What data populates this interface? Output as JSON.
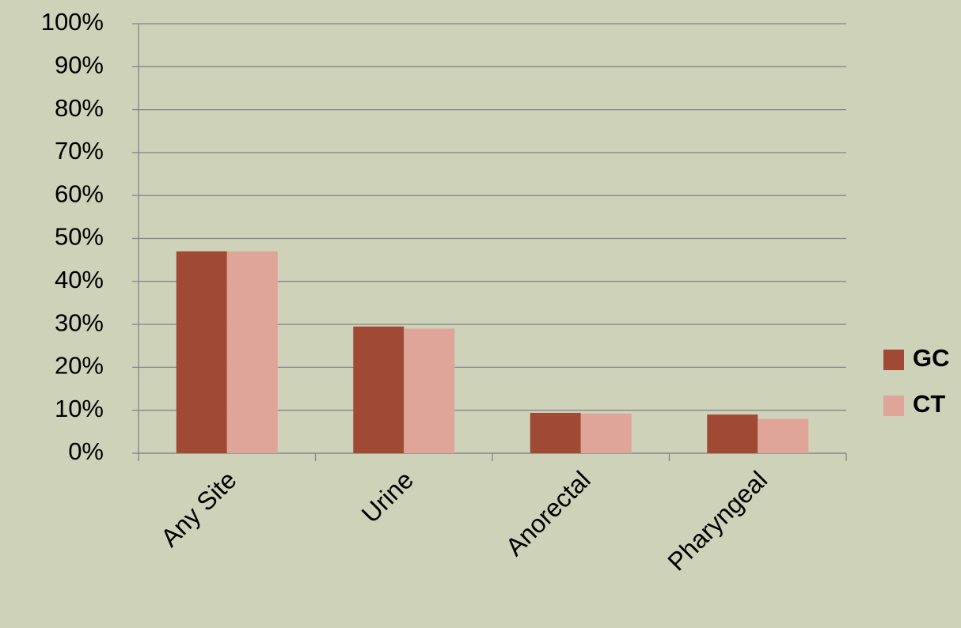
{
  "chart_data": {
    "type": "bar",
    "categories": [
      "Any Site",
      "Urine",
      "Anorectal",
      "Pharyngeal"
    ],
    "series": [
      {
        "name": "GC",
        "color": "#a04a35",
        "values": [
          47,
          29.5,
          9.4,
          9
        ]
      },
      {
        "name": "CT",
        "color": "#dea598",
        "values": [
          47,
          29,
          9.2,
          8
        ]
      }
    ],
    "ylim": [
      0,
      100
    ],
    "yticks": [
      {
        "value": 0,
        "label": "0%"
      },
      {
        "value": 10,
        "label": "10%"
      },
      {
        "value": 20,
        "label": "20%"
      },
      {
        "value": 30,
        "label": "30%"
      },
      {
        "value": 40,
        "label": "40%"
      },
      {
        "value": 50,
        "label": "50%"
      },
      {
        "value": 60,
        "label": "60%"
      },
      {
        "value": 70,
        "label": "70%"
      },
      {
        "value": 80,
        "label": "80%"
      },
      {
        "value": 90,
        "label": "90%"
      },
      {
        "value": 100,
        "label": "100%"
      }
    ],
    "grid": true,
    "legend": "right"
  }
}
